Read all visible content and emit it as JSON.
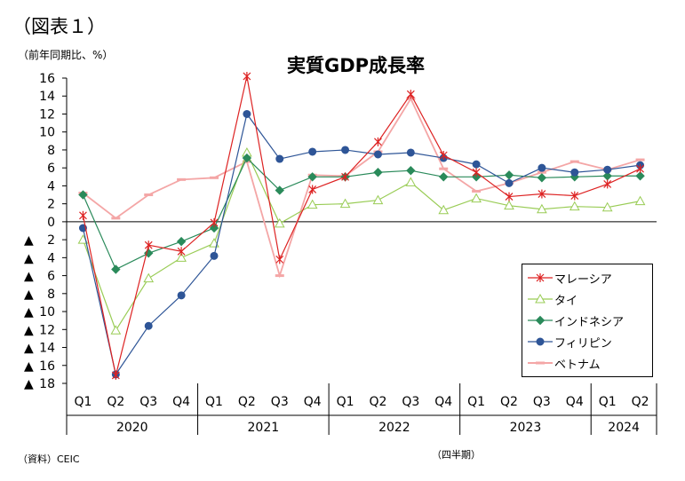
{
  "figure_label": "（図表１）",
  "unit_label": "（前年同期比、%）",
  "source": "（資料）CEIC",
  "x_unit": "（四半期）",
  "chart_data": {
    "type": "line",
    "title": "実質GDP成長率",
    "ylim": [
      -18,
      16
    ],
    "yticks": [
      {
        "value": 16,
        "label": "16"
      },
      {
        "value": 14,
        "label": "14"
      },
      {
        "value": 12,
        "label": "12"
      },
      {
        "value": 10,
        "label": "10"
      },
      {
        "value": 8,
        "label": "8"
      },
      {
        "value": 6,
        "label": "6"
      },
      {
        "value": 4,
        "label": "4"
      },
      {
        "value": 2,
        "label": "2"
      },
      {
        "value": 0,
        "label": "0"
      },
      {
        "value": -2,
        "label": "▲ 2"
      },
      {
        "value": -4,
        "label": "▲ 4"
      },
      {
        "value": -6,
        "label": "▲ 6"
      },
      {
        "value": -8,
        "label": "▲ 8"
      },
      {
        "value": -10,
        "label": "▲ 10"
      },
      {
        "value": -12,
        "label": "▲ 12"
      },
      {
        "value": -14,
        "label": "▲ 14"
      },
      {
        "value": -16,
        "label": "▲ 16"
      },
      {
        "value": -18,
        "label": "▲ 18"
      }
    ],
    "categories": [
      "Q1",
      "Q2",
      "Q3",
      "Q4",
      "Q1",
      "Q2",
      "Q3",
      "Q4",
      "Q1",
      "Q2",
      "Q3",
      "Q4",
      "Q1",
      "Q2",
      "Q3",
      "Q4",
      "Q1",
      "Q2"
    ],
    "years": [
      {
        "label": "2020",
        "count": 4
      },
      {
        "label": "2021",
        "count": 4
      },
      {
        "label": "2022",
        "count": 4
      },
      {
        "label": "2023",
        "count": 4
      },
      {
        "label": "2024",
        "count": 2
      }
    ],
    "series": [
      {
        "name": "ベトナム",
        "color": "#f4a6a6",
        "marker": "dash",
        "values": [
          3.2,
          0.4,
          3.0,
          4.7,
          4.9,
          6.7,
          -6.0,
          5.2,
          5.1,
          7.8,
          13.7,
          5.9,
          3.4,
          4.3,
          5.5,
          6.7,
          5.8,
          6.9
        ]
      },
      {
        "name": "タイ",
        "color": "#99cc55",
        "marker": "triangle",
        "values": [
          -2.0,
          -12.1,
          -6.3,
          -4.0,
          -2.4,
          7.7,
          -0.2,
          1.9,
          2.0,
          2.4,
          4.4,
          1.3,
          2.6,
          1.8,
          1.4,
          1.7,
          1.6,
          2.3
        ]
      },
      {
        "name": "インドネシア",
        "color": "#2a8a5a",
        "marker": "diamond",
        "values": [
          3.0,
          -5.3,
          -3.5,
          -2.2,
          -0.7,
          7.1,
          3.5,
          5.0,
          5.0,
          5.5,
          5.7,
          5.0,
          5.0,
          5.2,
          4.9,
          5.0,
          5.1,
          5.1
        ]
      },
      {
        "name": "フィリピン",
        "color": "#2e5597",
        "marker": "circle",
        "values": [
          -0.7,
          -17.0,
          -11.6,
          -8.2,
          -3.8,
          12.0,
          7.0,
          7.8,
          8.0,
          7.5,
          7.7,
          7.1,
          6.4,
          4.3,
          6.0,
          5.5,
          5.8,
          6.3
        ]
      },
      {
        "name": "マレーシア",
        "color": "#dd2222",
        "marker": "star",
        "values": [
          0.7,
          -17.1,
          -2.6,
          -3.3,
          -0.1,
          16.2,
          -4.2,
          3.6,
          5.0,
          8.9,
          14.2,
          7.4,
          5.5,
          2.8,
          3.1,
          2.9,
          4.2,
          5.9
        ]
      }
    ],
    "legend": {
      "position": "bottom-right",
      "order": [
        "マレーシア",
        "タイ",
        "インドネシア",
        "フィリピン",
        "ベトナム"
      ]
    }
  }
}
